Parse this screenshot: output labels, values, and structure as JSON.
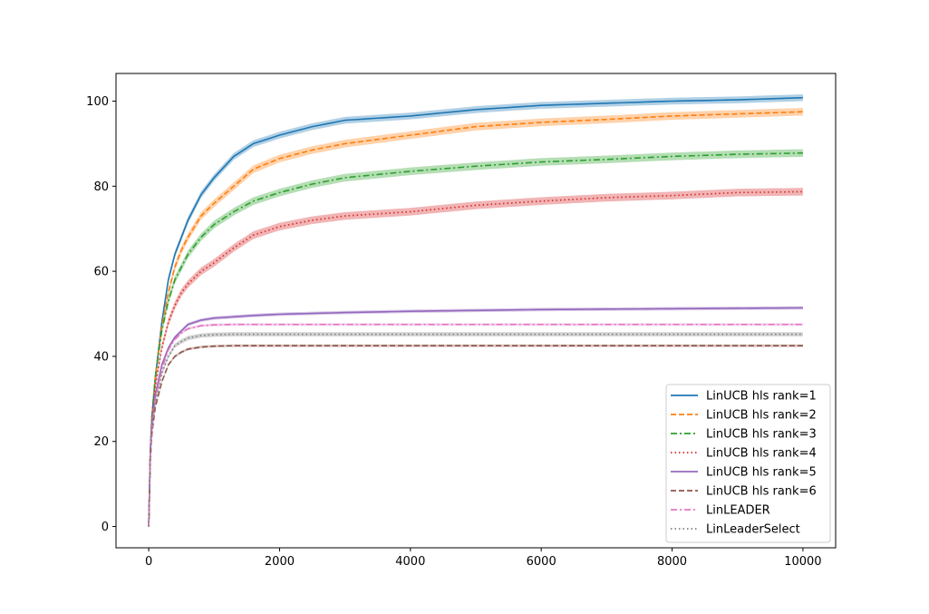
{
  "chart_data": {
    "type": "line",
    "title": "",
    "xlabel": "",
    "ylabel": "",
    "xlim": [
      -500,
      10500
    ],
    "ylim": [
      -5,
      106.5
    ],
    "xticks": [
      0,
      2000,
      4000,
      6000,
      8000,
      10000
    ],
    "xtick_labels": [
      "0",
      "2000",
      "4000",
      "6000",
      "8000",
      "10000"
    ],
    "yticks": [
      0,
      20,
      40,
      60,
      80,
      100
    ],
    "ytick_labels": [
      "0",
      "20",
      "40",
      "60",
      "80",
      "100"
    ],
    "grid": false,
    "legend_position": "lower-right",
    "x": [
      0,
      25,
      50,
      100,
      200,
      300,
      400,
      500,
      600,
      800,
      1000,
      1300,
      1600,
      2000,
      2500,
      3000,
      4000,
      5000,
      6000,
      7000,
      8000,
      9000,
      10000
    ],
    "series": [
      {
        "name": "LinUCB hls rank=1",
        "color": "#1f77b4",
        "dash": "solid",
        "band": 0.8,
        "values": [
          0,
          18,
          26,
          35,
          48,
          58,
          64,
          68,
          72,
          78,
          82,
          87,
          90,
          92,
          94,
          95.5,
          96.5,
          98,
          99,
          99.5,
          100,
          100.3,
          100.8
        ]
      },
      {
        "name": "LinUCB hls rank=2",
        "color": "#ff7f0e",
        "dash": "dashed",
        "band": 0.9,
        "values": [
          0,
          18,
          26,
          35,
          47,
          55,
          61,
          65,
          68,
          73,
          76,
          80,
          84,
          86.5,
          88.5,
          90,
          92,
          94,
          95,
          95.7,
          96.5,
          97,
          97.5
        ]
      },
      {
        "name": "LinUCB hls rank=3",
        "color": "#2ca02c",
        "dash": "dashdot",
        "band": 0.9,
        "values": [
          0,
          18,
          26,
          35,
          46,
          53,
          58,
          61,
          64,
          68,
          71,
          74,
          76.5,
          78.5,
          80.5,
          82,
          83.5,
          84.7,
          85.7,
          86.3,
          87,
          87.5,
          87.8
        ]
      },
      {
        "name": "LinUCB hls rank=4",
        "color": "#d62728",
        "dash": "dotted",
        "band": 0.9,
        "values": [
          0,
          18,
          25,
          33,
          42,
          48,
          52,
          55,
          57,
          60,
          62,
          65.5,
          68.5,
          70.5,
          72,
          73,
          74,
          75.5,
          76.5,
          77.3,
          77.8,
          78.5,
          78.7
        ]
      },
      {
        "name": "LinUCB hls rank=5",
        "color": "#9467bd",
        "dash": "solid",
        "band": 0.4,
        "values": [
          0,
          18,
          24,
          31,
          38,
          42,
          44.5,
          46,
          47.5,
          48.5,
          49,
          49.3,
          49.6,
          49.9,
          50.1,
          50.3,
          50.6,
          50.8,
          51,
          51.1,
          51.2,
          51.3,
          51.4
        ]
      },
      {
        "name": "LinUCB hls rank=6",
        "color": "#8c564b",
        "dash": "dashed",
        "band": 0.3,
        "values": [
          0,
          16,
          22,
          28,
          34,
          38,
          40,
          41,
          41.7,
          42.2,
          42.4,
          42.5,
          42.5,
          42.5,
          42.5,
          42.5,
          42.5,
          42.5,
          42.5,
          42.5,
          42.5,
          42.5,
          42.5
        ]
      },
      {
        "name": "LinLEADER",
        "color": "#e377c2",
        "dash": "dashdot",
        "band": 0.3,
        "values": [
          0,
          17,
          23,
          30,
          37,
          41.5,
          44,
          45.5,
          46.5,
          47.2,
          47.4,
          47.5,
          47.5,
          47.5,
          47.5,
          47.5,
          47.5,
          47.5,
          47.5,
          47.5,
          47.5,
          47.5,
          47.5
        ]
      },
      {
        "name": "LinLeaderSelect",
        "color": "#7f7f7f",
        "dash": "dotted",
        "band": 0.5,
        "values": [
          0,
          16,
          22,
          29,
          36,
          40,
          42.5,
          43.5,
          44.3,
          44.9,
          45.1,
          45.2,
          45.2,
          45.2,
          45.2,
          45.2,
          45.2,
          45.2,
          45.2,
          45.2,
          45.2,
          45.2,
          45.2
        ]
      }
    ]
  }
}
